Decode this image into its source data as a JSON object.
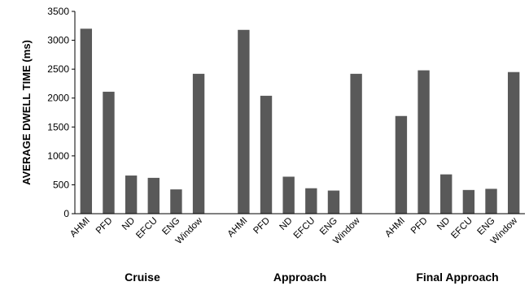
{
  "chart_data": {
    "type": "bar",
    "ylabel": "AVERAGE DWELL TIME (ms)",
    "ylim": [
      0,
      3500
    ],
    "yticks": [
      0,
      500,
      1000,
      1500,
      2000,
      2500,
      3000,
      3500
    ],
    "grid": false,
    "bar_color": "#595959",
    "groups": [
      {
        "name": "Cruise",
        "categories": [
          "AHMI",
          "PFD",
          "ND",
          "EFCU",
          "ENG",
          "Window"
        ],
        "values": [
          3200,
          2110,
          660,
          620,
          420,
          2420
        ]
      },
      {
        "name": "Approach",
        "categories": [
          "AHMI",
          "PFD",
          "ND",
          "EFCU",
          "ENG",
          "Window"
        ],
        "values": [
          3180,
          2040,
          640,
          440,
          400,
          2420
        ]
      },
      {
        "name": "Final Approach",
        "categories": [
          "AHMI",
          "PFD",
          "ND",
          "EFCU",
          "ENG",
          "Window"
        ],
        "values": [
          1690,
          2480,
          680,
          410,
          430,
          2450
        ]
      }
    ]
  }
}
